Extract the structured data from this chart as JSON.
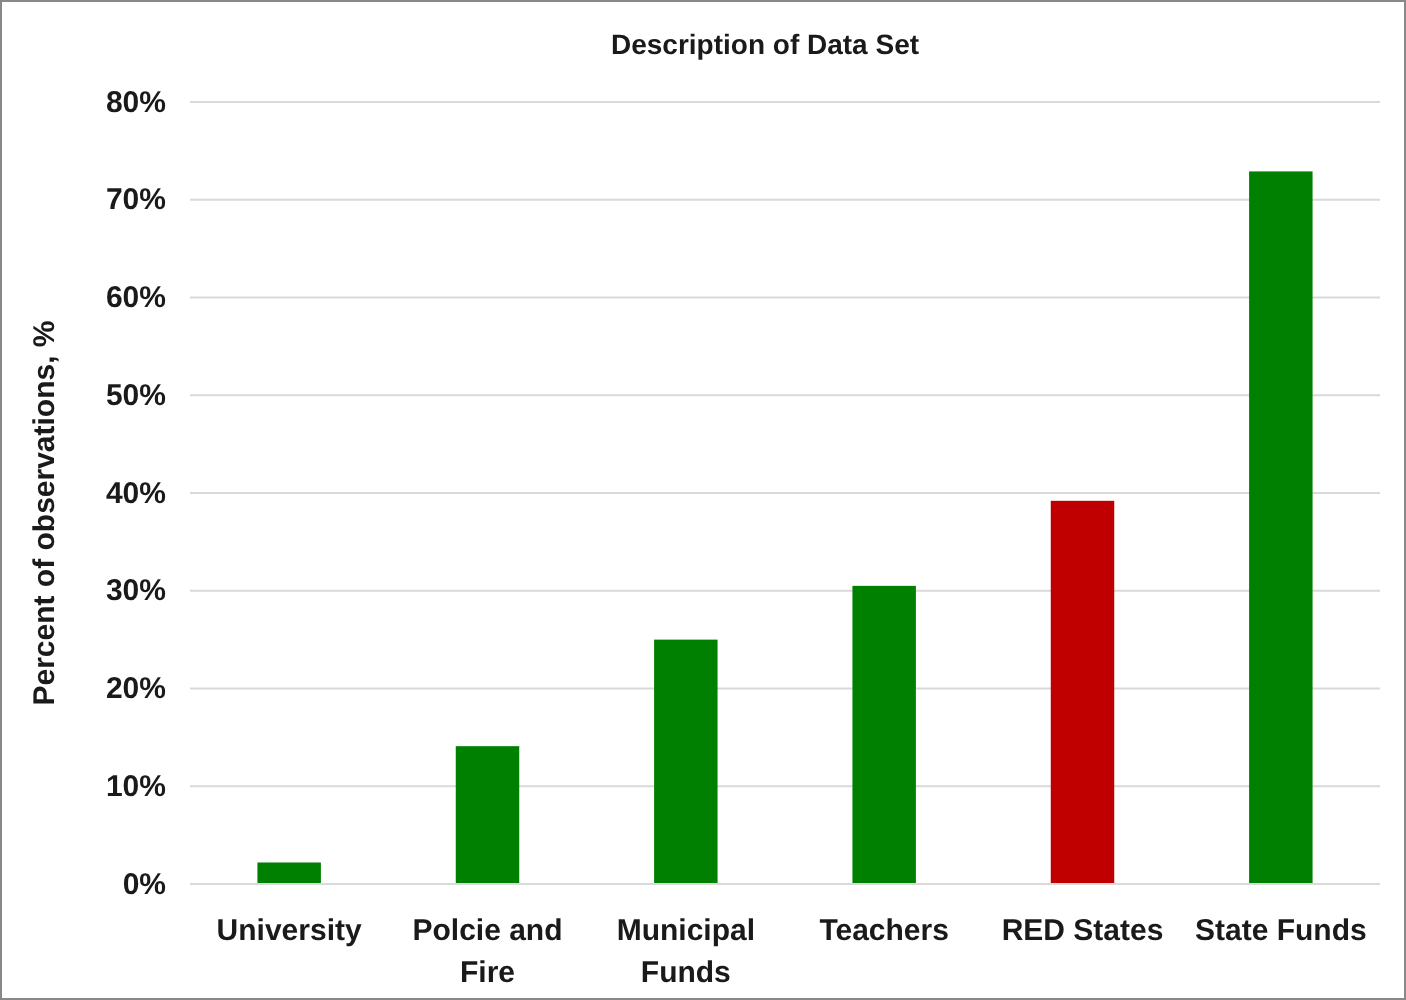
{
  "chart_data": {
    "type": "bar",
    "title": "Description of Data Set",
    "ylabel": "Percent of observations, %",
    "categories": [
      "University",
      "Polcie and Fire",
      "Municipal Funds",
      "Teachers",
      "RED States",
      "State Funds"
    ],
    "values": [
      2.2,
      14.1,
      25,
      30.5,
      39.2,
      72.9
    ],
    "colors": [
      "#008000",
      "#008000",
      "#008000",
      "#008000",
      "#c00000",
      "#008000"
    ],
    "ylim": [
      0,
      80
    ],
    "yticks": [
      {
        "value": 0,
        "label": "0%"
      },
      {
        "value": 10,
        "label": "10%"
      },
      {
        "value": 20,
        "label": "20%"
      },
      {
        "value": 30,
        "label": "30%"
      },
      {
        "value": 40,
        "label": "40%"
      },
      {
        "value": 50,
        "label": "50%"
      },
      {
        "value": 60,
        "label": "60%"
      },
      {
        "value": 70,
        "label": "70%"
      },
      {
        "value": 80,
        "label": "80%"
      }
    ],
    "grid": "y"
  }
}
